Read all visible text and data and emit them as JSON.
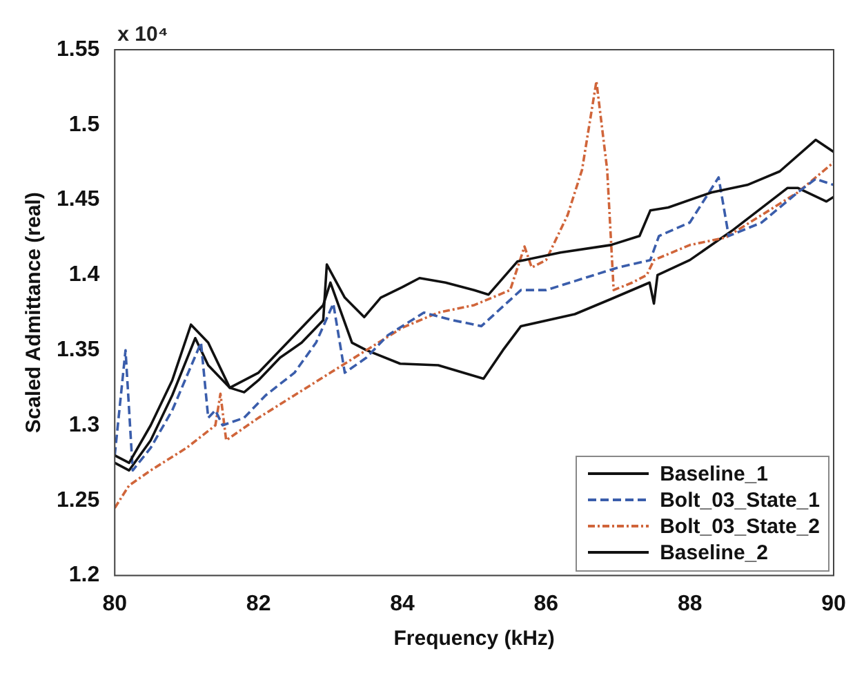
{
  "chart_data": {
    "type": "line",
    "xlabel": "Frequency (kHz)",
    "ylabel": "Scaled Admittance (real)",
    "annotations": [
      "x 10⁴"
    ],
    "xlim": [
      80,
      90
    ],
    "xticks": [
      80,
      82,
      84,
      86,
      88,
      90
    ],
    "ylim": [
      1.2,
      1.55
    ],
    "yticks": [
      1.2,
      1.25,
      1.3,
      1.35,
      1.4,
      1.45,
      1.5,
      1.55
    ],
    "grid": false,
    "legend": "bottom right",
    "marker": "none",
    "series": [
      {
        "name": "Baseline_1",
        "color": "#111111",
        "line_style": "solid",
        "x": [
          80,
          80.2,
          80.5,
          80.8,
          81.06,
          81.3,
          81.6,
          81.8,
          82.0,
          82.3,
          82.6,
          82.9,
          82.95,
          83.2,
          83.47,
          83.7,
          84.0,
          84.24,
          84.6,
          85.0,
          85.2,
          85.6,
          86.2,
          86.9,
          87.3,
          87.45,
          87.7,
          88.3,
          88.8,
          89.25,
          89.75,
          90
        ],
        "values": [
          1.28,
          1.275,
          1.3,
          1.33,
          1.367,
          1.355,
          1.325,
          1.322,
          1.33,
          1.345,
          1.355,
          1.37,
          1.407,
          1.385,
          1.372,
          1.385,
          1.392,
          1.398,
          1.395,
          1.39,
          1.387,
          1.409,
          1.415,
          1.42,
          1.426,
          1.443,
          1.445,
          1.455,
          1.46,
          1.469,
          1.49,
          1.482
        ]
      },
      {
        "name": "Bolt_03_State_1",
        "color": "#3a5dab",
        "line_style": "dashed",
        "x": [
          80,
          80.15,
          80.25,
          80.5,
          80.8,
          81.2,
          81.3,
          81.4,
          81.5,
          81.8,
          82.1,
          82.5,
          82.8,
          83.04,
          83.2,
          83.5,
          83.8,
          84.3,
          84.7,
          85.1,
          85.65,
          86.0,
          86.4,
          87.0,
          87.45,
          87.57,
          88.0,
          88.4,
          88.54,
          89.0,
          89.5,
          89.75,
          90
        ],
        "values": [
          1.28,
          1.35,
          1.27,
          1.285,
          1.31,
          1.355,
          1.305,
          1.31,
          1.3,
          1.305,
          1.32,
          1.335,
          1.355,
          1.381,
          1.335,
          1.345,
          1.36,
          1.375,
          1.37,
          1.366,
          1.39,
          1.39,
          1.396,
          1.405,
          1.41,
          1.426,
          1.435,
          1.465,
          1.426,
          1.435,
          1.455,
          1.464,
          1.46
        ]
      },
      {
        "name": "Bolt_03_State_2",
        "color": "#d0653a",
        "line_style": "dotted",
        "x": [
          80,
          80.2,
          80.5,
          81.0,
          81.4,
          81.47,
          81.55,
          82.0,
          82.5,
          83.0,
          83.5,
          84.0,
          84.5,
          85.0,
          85.5,
          85.7,
          85.8,
          86.0,
          86.3,
          86.5,
          86.7,
          86.85,
          86.94,
          87.2,
          87.4,
          87.5,
          88.0,
          88.5,
          89.0,
          89.5,
          90
        ],
        "values": [
          1.245,
          1.26,
          1.27,
          1.285,
          1.3,
          1.321,
          1.29,
          1.305,
          1.32,
          1.335,
          1.35,
          1.365,
          1.375,
          1.38,
          1.39,
          1.419,
          1.405,
          1.41,
          1.44,
          1.47,
          1.529,
          1.47,
          1.39,
          1.395,
          1.4,
          1.41,
          1.42,
          1.425,
          1.44,
          1.455,
          1.475
        ]
      },
      {
        "name": "Baseline_2",
        "color": "#111111",
        "line_style": "solid",
        "x": [
          80,
          80.2,
          80.5,
          80.8,
          81.12,
          81.3,
          81.6,
          82.0,
          82.5,
          82.9,
          83.0,
          83.3,
          83.5,
          83.97,
          84.5,
          85.13,
          85.4,
          85.65,
          86.4,
          86.9,
          87.44,
          87.5,
          87.55,
          88.0,
          88.6,
          89.36,
          89.5,
          89.9,
          90
        ],
        "values": [
          1.275,
          1.27,
          1.29,
          1.32,
          1.358,
          1.34,
          1.325,
          1.335,
          1.36,
          1.38,
          1.395,
          1.355,
          1.35,
          1.341,
          1.34,
          1.331,
          1.35,
          1.366,
          1.374,
          1.384,
          1.395,
          1.381,
          1.4,
          1.41,
          1.43,
          1.458,
          1.458,
          1.449,
          1.452
        ]
      }
    ]
  }
}
